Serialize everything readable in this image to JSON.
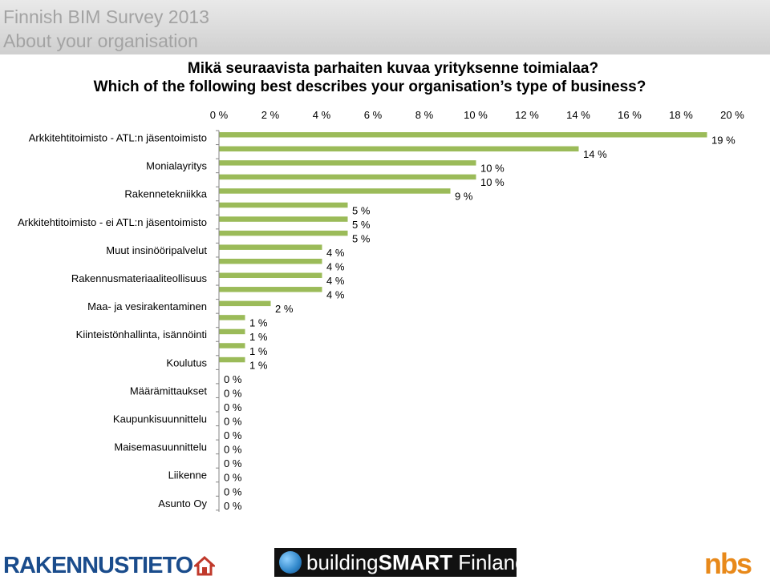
{
  "header": {
    "title_line1": "Finnish BIM Survey 2013",
    "title_line2": "About your organisation"
  },
  "question": {
    "fi": "Mikä seuraavista parhaiten kuvaa yrityksenne toimialaa?",
    "en": "Which of the following best describes your organisation’s type of business?"
  },
  "chart_data": {
    "type": "bar",
    "orientation": "horizontal",
    "xlim": [
      0,
      20
    ],
    "x_ticks": [
      "0 %",
      "2 %",
      "4 %",
      "6 %",
      "8 %",
      "10 %",
      "12 %",
      "14 %",
      "16 %",
      "18 %",
      "20 %"
    ],
    "x_tick_values": [
      0,
      2,
      4,
      6,
      8,
      10,
      12,
      14,
      16,
      18,
      20
    ],
    "axis_position": "top",
    "grid": false,
    "bar_color": "#9bbb59",
    "labeled_categories": [
      {
        "label": "Arkkitehtitoimisto - ATL:n jäsentoimisto",
        "index": 0
      },
      {
        "label": "Monialayritys",
        "index": 2
      },
      {
        "label": "Rakennetekniikka",
        "index": 4
      },
      {
        "label": "Arkkitehtitoimisto - ei ATL:n jäsentoimisto",
        "index": 6
      },
      {
        "label": "Muut insinööripalvelut",
        "index": 8
      },
      {
        "label": "Rakennusmateriaaliteollisuus",
        "index": 10
      },
      {
        "label": "Maa- ja vesirakentaminen",
        "index": 12
      },
      {
        "label": "Kiinteistönhallinta, isännöinti",
        "index": 14
      },
      {
        "label": "Koulutus",
        "index": 16
      },
      {
        "label": "Määrämittaukset",
        "index": 18
      },
      {
        "label": "Kaupunkisuunnittelu",
        "index": 20
      },
      {
        "label": "Maisemasuunnittelu",
        "index": 22
      },
      {
        "label": "Liikenne",
        "index": 24
      },
      {
        "label": "Asunto Oy",
        "index": 26
      }
    ],
    "values": [
      19,
      14,
      10,
      10,
      9,
      5,
      5,
      5,
      4,
      4,
      4,
      4,
      2,
      1,
      1,
      1,
      1,
      0,
      0,
      0,
      0,
      0,
      0,
      0,
      0,
      0,
      0
    ],
    "value_labels": [
      "19 %",
      "14 %",
      "10 %",
      "10 %",
      "9 %",
      "5 %",
      "5 %",
      "5 %",
      "4 %",
      "4 %",
      "4 %",
      "4 %",
      "2 %",
      "1 %",
      "1 %",
      "1 %",
      "1 %",
      "0 %",
      "0 %",
      "0 %",
      "0 %",
      "0 %",
      "0 %",
      "0 %",
      "0 %",
      "0 %",
      "0 %"
    ]
  },
  "footer": {
    "logo_left": "RAKENNUSTIETO",
    "logo_center_part1": "building",
    "logo_center_part2": "SMART",
    "logo_center_part3": " Finland",
    "logo_right": "nbs"
  }
}
